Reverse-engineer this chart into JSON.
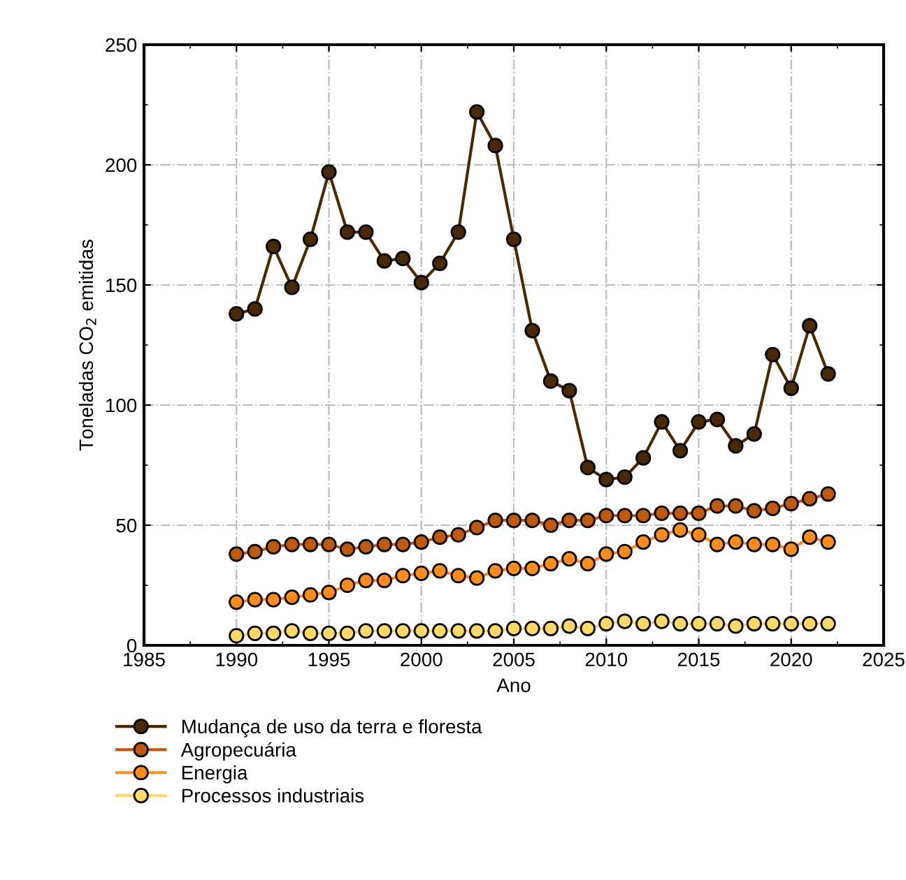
{
  "chart_data": {
    "type": "line",
    "xlabel": "Ano",
    "ylabel": "Toneladas CO$_{2}$ emitidas",
    "x": [
      1990,
      1991,
      1992,
      1993,
      1994,
      1995,
      1996,
      1997,
      1998,
      1999,
      2000,
      2001,
      2002,
      2003,
      2004,
      2005,
      2006,
      2007,
      2008,
      2009,
      2010,
      2011,
      2012,
      2013,
      2014,
      2015,
      2016,
      2017,
      2018,
      2019,
      2020,
      2021,
      2022
    ],
    "xlim": [
      1985,
      2025
    ],
    "xticks": [
      1985,
      1990,
      1995,
      2000,
      2005,
      2010,
      2015,
      2020,
      2025
    ],
    "ylim": [
      0,
      250
    ],
    "yticks": [
      0,
      50,
      100,
      150,
      200,
      250
    ],
    "grid": true,
    "legend": "bottom",
    "marker": "circle",
    "line_style": "solid",
    "series": [
      {
        "name": "Mudança de uso da terra e floresta",
        "color": "#4a2a05",
        "values": [
          138,
          140,
          166,
          149,
          169,
          197,
          172,
          172,
          160,
          161,
          151,
          159,
          172,
          222,
          208,
          169,
          131,
          110,
          106,
          74,
          69,
          70,
          78,
          93,
          81,
          93,
          94,
          83,
          88,
          121,
          107,
          133,
          113
        ]
      },
      {
        "name": "Agropecuária",
        "color": "#c0590a",
        "values": [
          38,
          39,
          41,
          42,
          42,
          42,
          40,
          41,
          42,
          42,
          43,
          45,
          46,
          49,
          52,
          52,
          52,
          50,
          52,
          52,
          54,
          54,
          54,
          55,
          55,
          55,
          58,
          58,
          56,
          57,
          59,
          61,
          63
        ]
      },
      {
        "name": "Energia",
        "color": "#ff8c1a",
        "values": [
          18,
          19,
          19,
          20,
          21,
          22,
          25,
          27,
          27,
          29,
          30,
          31,
          29,
          28,
          31,
          32,
          32,
          34,
          36,
          34,
          38,
          39,
          43,
          46,
          48,
          46,
          42,
          43,
          42,
          42,
          40,
          45,
          43
        ]
      },
      {
        "name": "Processos industriais",
        "color": "#ffd966",
        "values": [
          4,
          5,
          5,
          6,
          5,
          5,
          5,
          6,
          6,
          6,
          6,
          6,
          6,
          6,
          6,
          7,
          7,
          7,
          8,
          7,
          9,
          10,
          9,
          10,
          9,
          9,
          9,
          8,
          9,
          9,
          9,
          9,
          9
        ]
      }
    ]
  }
}
